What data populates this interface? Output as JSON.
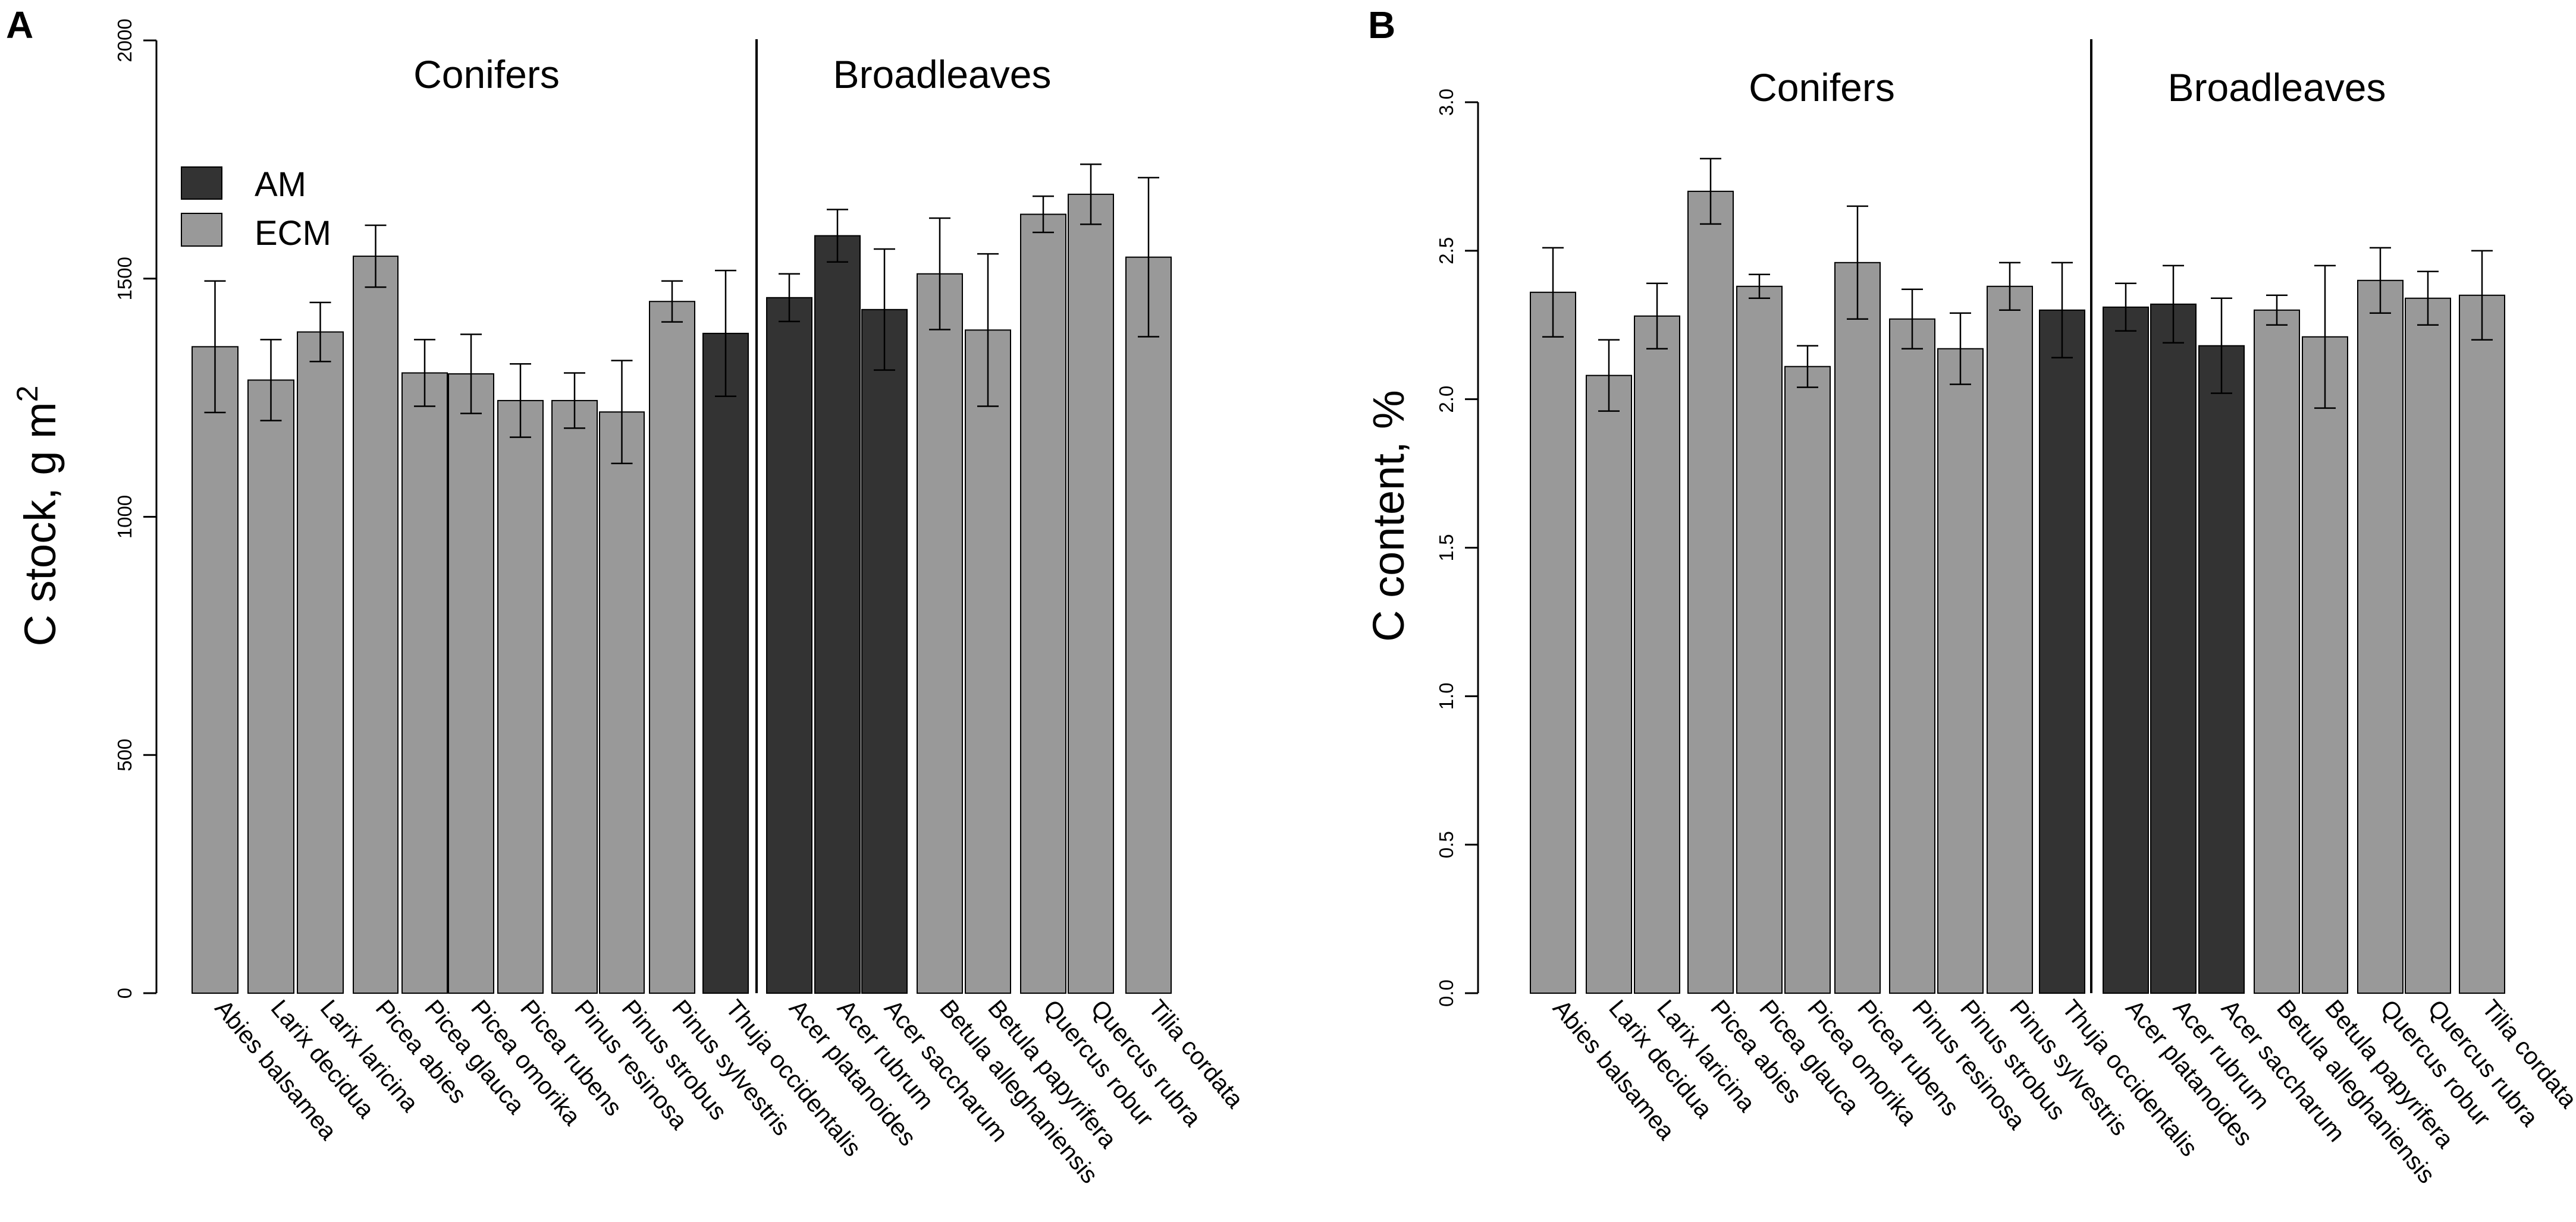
{
  "colors": {
    "am": "#333333",
    "ecm": "#999999",
    "stroke": "#000000"
  },
  "chart_data": [
    {
      "type": "bar",
      "panel_label": "A",
      "ylabel": "C stock, g m",
      "ylabel_superscript": "2",
      "ylim": [
        0,
        2000
      ],
      "yticks": [
        0,
        500,
        1000,
        1500,
        2000
      ],
      "group_labels": [
        "Conifers",
        "Broadleaves"
      ],
      "legend": [
        {
          "label": "AM",
          "type": "AM"
        },
        {
          "label": "ECM",
          "type": "ECM"
        }
      ],
      "categories": [
        "Abies balsamea",
        "Larix decidua",
        "Larix laricina",
        "Picea abies",
        "Picea glauca",
        "Picea omorika",
        "Picea rubens",
        "Pinus resinosa",
        "Pinus strobus",
        "Pinus sylvestris",
        "Thuja occidentalis",
        "Acer platanoides",
        "Acer rubrum",
        "Acer saccharum",
        "Betula alleghaniensis",
        "Betula papyrifera",
        "Quercus robur",
        "Quercus rubra",
        "Tilia cordata"
      ],
      "mycorrhiza": [
        "ECM",
        "ECM",
        "ECM",
        "ECM",
        "ECM",
        "ECM",
        "ECM",
        "ECM",
        "ECM",
        "ECM",
        "AM",
        "AM",
        "AM",
        "AM",
        "ECM",
        "ECM",
        "ECM",
        "ECM",
        "ECM"
      ],
      "values": [
        1357,
        1287,
        1388,
        1547,
        1302,
        1300,
        1244,
        1244,
        1220,
        1452,
        1385,
        1460,
        1590,
        1435,
        1510,
        1392,
        1635,
        1677,
        1545
      ],
      "errors": [
        138,
        85,
        62,
        65,
        70,
        83,
        77,
        58,
        108,
        43,
        132,
        50,
        55,
        127,
        117,
        160,
        38,
        63,
        167
      ]
    },
    {
      "type": "bar",
      "panel_label": "B",
      "ylabel": "C content, %",
      "ylim": [
        0,
        3.0
      ],
      "yticks": [
        "0.0",
        "0.5",
        "1.0",
        "1.5",
        "2.0",
        "2.5",
        "3.0"
      ],
      "group_labels": [
        "Conifers",
        "Broadleaves"
      ],
      "categories": [
        "Abies balsamea",
        "Larix decidua",
        "Larix laricina",
        "Picea abies",
        "Picea glauca",
        "Picea omorika",
        "Picea rubens",
        "Pinus resinosa",
        "Pinus strobus",
        "Pinus sylvestris",
        "Thuja occidentalis",
        "Acer platanoides",
        "Acer rubrum",
        "Acer saccharum",
        "Betula alleghaniensis",
        "Betula papyrifera",
        "Quercus robur",
        "Quercus rubra",
        "Tilia cordata"
      ],
      "mycorrhiza": [
        "ECM",
        "ECM",
        "ECM",
        "ECM",
        "ECM",
        "ECM",
        "ECM",
        "ECM",
        "ECM",
        "ECM",
        "AM",
        "AM",
        "AM",
        "AM",
        "ECM",
        "ECM",
        "ECM",
        "ECM",
        "ECM"
      ],
      "values": [
        2.36,
        2.08,
        2.28,
        2.7,
        2.38,
        2.11,
        2.46,
        2.27,
        2.17,
        2.38,
        2.3,
        2.31,
        2.32,
        2.18,
        2.3,
        2.21,
        2.4,
        2.34,
        2.35
      ],
      "errors": [
        0.15,
        0.12,
        0.11,
        0.11,
        0.04,
        0.07,
        0.19,
        0.1,
        0.12,
        0.08,
        0.16,
        0.08,
        0.13,
        0.16,
        0.05,
        0.24,
        0.11,
        0.09,
        0.15
      ]
    }
  ]
}
